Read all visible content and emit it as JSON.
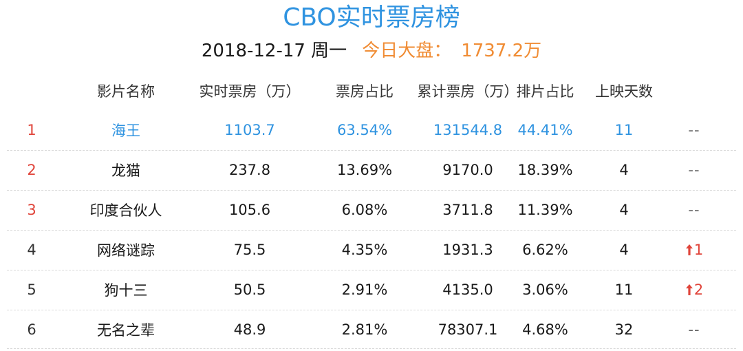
{
  "header": {
    "title": "CBO实时票房榜",
    "date": "2018-12-17 周一",
    "total_label": "今日大盘：",
    "total_value": "1737.2万"
  },
  "columns": {
    "name": "影片名称",
    "today": "实时票房（万）",
    "share": "票房占比",
    "total": "累计票房（万）",
    "schedule": "排片占比",
    "days": "上映天数"
  },
  "colors": {
    "accent_blue": "#2f93e0",
    "accent_orange": "#f08c34",
    "rank_red": "#e0443a"
  },
  "rows": [
    {
      "rank": "1",
      "name": "海王",
      "today": "1103.7",
      "share": "63.54%",
      "total": "131544.8",
      "schedule": "44.41%",
      "days": "11",
      "trend": "--"
    },
    {
      "rank": "2",
      "name": "龙猫",
      "today": "237.8",
      "share": "13.69%",
      "total": "9170.0",
      "schedule": "18.39%",
      "days": "4",
      "trend": "--"
    },
    {
      "rank": "3",
      "name": "印度合伙人",
      "today": "105.6",
      "share": "6.08%",
      "total": "3711.8",
      "schedule": "11.39%",
      "days": "4",
      "trend": "--"
    },
    {
      "rank": "4",
      "name": "网络谜踪",
      "today": "75.5",
      "share": "4.35%",
      "total": "1931.3",
      "schedule": "6.62%",
      "days": "4",
      "trend": "1",
      "trend_icon": "up-arrow-icon"
    },
    {
      "rank": "5",
      "name": "狗十三",
      "today": "50.5",
      "share": "2.91%",
      "total": "4135.0",
      "schedule": "3.06%",
      "days": "11",
      "trend": "2",
      "trend_icon": "up-arrow-icon"
    },
    {
      "rank": "6",
      "name": "无名之辈",
      "today": "48.9",
      "share": "2.81%",
      "total": "78307.1",
      "schedule": "4.68%",
      "days": "32",
      "trend": "--"
    }
  ]
}
